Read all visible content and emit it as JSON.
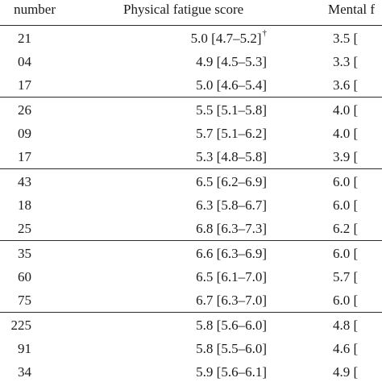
{
  "headers": {
    "n_label": "number",
    "physical_label": "Physical fatigue score",
    "mental_label": "Mental f"
  },
  "groups": [
    {
      "rows": [
        {
          "n": "21",
          "physical": "5.0 [4.7–5.2]",
          "physical_note": "†",
          "mental": "3.5 ["
        },
        {
          "n": "04",
          "physical": "4.9 [4.5–5.3]",
          "physical_note": "",
          "mental": "3.3 ["
        },
        {
          "n": "17",
          "physical": "5.0 [4.6–5.4]",
          "physical_note": "",
          "mental": "3.6 ["
        }
      ]
    },
    {
      "rows": [
        {
          "n": "26",
          "physical": "5.5 [5.1–5.8]",
          "physical_note": "",
          "mental": "4.0 ["
        },
        {
          "n": "09",
          "physical": "5.7 [5.1–6.2]",
          "physical_note": "",
          "mental": "4.0 ["
        },
        {
          "n": "17",
          "physical": "5.3 [4.8–5.8]",
          "physical_note": "",
          "mental": "3.9 ["
        }
      ]
    },
    {
      "rows": [
        {
          "n": "43",
          "physical": "6.5 [6.2–6.9]",
          "physical_note": "",
          "mental": "6.0 ["
        },
        {
          "n": "18",
          "physical": "6.3 [5.8–6.7]",
          "physical_note": "",
          "mental": "6.0 ["
        },
        {
          "n": "25",
          "physical": "6.8 [6.3–7.3]",
          "physical_note": "",
          "mental": "6.2 ["
        }
      ]
    },
    {
      "rows": [
        {
          "n": "35",
          "physical": "6.6 [6.3–6.9]",
          "physical_note": "",
          "mental": "6.0 ["
        },
        {
          "n": "60",
          "physical": "6.5 [6.1–7.0]",
          "physical_note": "",
          "mental": "5.7 ["
        },
        {
          "n": "75",
          "physical": "6.7 [6.3–7.0]",
          "physical_note": "",
          "mental": "6.0 ["
        }
      ]
    },
    {
      "rows": [
        {
          "n": "225",
          "physical": "5.8 [5.6–6.0]",
          "physical_note": "",
          "mental": "4.8 ["
        },
        {
          "n": "91",
          "physical": "5.8 [5.5–6.0]",
          "physical_note": "",
          "mental": "4.6 ["
        },
        {
          "n": "34",
          "physical": "5.9 [5.6–6.1]",
          "physical_note": "",
          "mental": "4.9 ["
        }
      ]
    }
  ]
}
